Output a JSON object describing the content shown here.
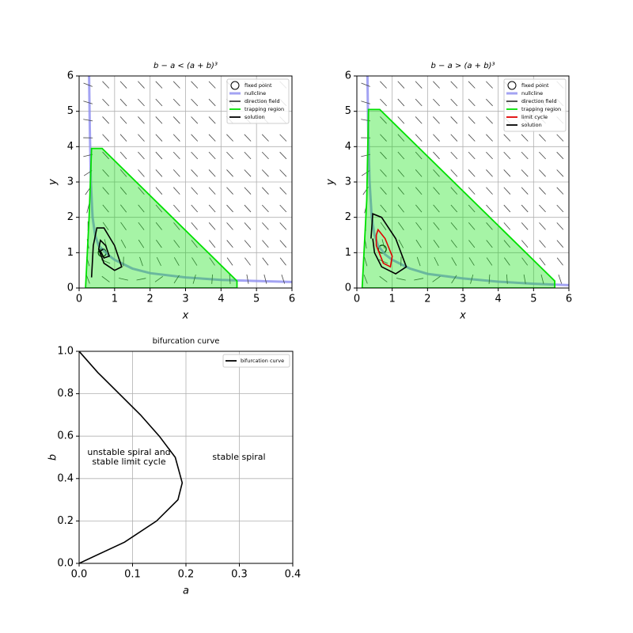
{
  "chart_data": [
    {
      "type": "line",
      "title": "b − a < (a + b)³",
      "xlabel": "x",
      "ylabel": "y",
      "xlim": [
        0,
        6
      ],
      "ylim": [
        0,
        6
      ],
      "xticks": [
        0,
        1,
        2,
        3,
        4,
        5,
        6
      ],
      "yticks": [
        0,
        1,
        2,
        3,
        4,
        5,
        6
      ],
      "grid": true,
      "legend": "upper right",
      "series": [
        {
          "name": "fixed point",
          "kind": "marker",
          "color": "#000000",
          "x": [
            0.65
          ],
          "values": [
            1.0
          ]
        },
        {
          "name": "nullcline",
          "kind": "line",
          "color": "#8c8cf0",
          "x": [
            0.28,
            0.3,
            0.33,
            0.38,
            0.45,
            0.55,
            0.8,
            1,
            1.5,
            2,
            3,
            4,
            5,
            6
          ],
          "values": [
            6,
            4.5,
            3,
            2,
            1.5,
            1.2,
            0.95,
            0.8,
            0.55,
            0.42,
            0.3,
            0.23,
            0.2,
            0.17
          ]
        },
        {
          "name": "direction field",
          "kind": "field",
          "color": "#444444"
        },
        {
          "name": "trapping region",
          "kind": "region",
          "color": "#00e000",
          "x": [
            0.18,
            0.28,
            0.35,
            0.65,
            4.45,
            4.45,
            0.18
          ],
          "values": [
            0,
            2,
            3.95,
            3.95,
            0.2,
            0,
            0
          ]
        },
        {
          "name": "solution",
          "kind": "line",
          "color": "#000000",
          "x": [
            0.35,
            0.4,
            0.5,
            0.7,
            1.0,
            1.2,
            1.0,
            0.7,
            0.55,
            0.6,
            0.75,
            0.85,
            0.7,
            0.6,
            0.68
          ],
          "values": [
            0.3,
            1.2,
            1.7,
            1.7,
            1.2,
            0.6,
            0.5,
            0.7,
            1.1,
            1.35,
            1.2,
            0.9,
            0.85,
            1.05,
            1.1
          ]
        }
      ]
    },
    {
      "type": "line",
      "title": "b − a > (a + b)³",
      "xlabel": "x",
      "ylabel": "y",
      "xlim": [
        0,
        6
      ],
      "ylim": [
        0,
        6
      ],
      "xticks": [
        0,
        1,
        2,
        3,
        4,
        5,
        6
      ],
      "yticks": [
        0,
        1,
        2,
        3,
        4,
        5,
        6
      ],
      "grid": true,
      "legend": "upper right",
      "series": [
        {
          "name": "fixed point",
          "kind": "marker",
          "color": "#000000",
          "x": [
            0.72
          ],
          "values": [
            1.1
          ]
        },
        {
          "name": "nullcline",
          "kind": "line",
          "color": "#8c8cf0",
          "x": [
            0.3,
            0.32,
            0.36,
            0.42,
            0.5,
            0.6,
            0.8,
            1,
            1.5,
            2,
            3,
            4,
            5,
            6
          ],
          "values": [
            6,
            4.5,
            3,
            2,
            1.5,
            1.2,
            0.95,
            0.8,
            0.55,
            0.4,
            0.27,
            0.18,
            0.12,
            0.08
          ]
        },
        {
          "name": "direction field",
          "kind": "field",
          "color": "#444444"
        },
        {
          "name": "trapping region",
          "kind": "region",
          "color": "#00e000",
          "x": [
            0.15,
            0.28,
            0.33,
            0.65,
            5.6,
            5.6,
            0.15
          ],
          "values": [
            0,
            2.5,
            5.05,
            5.05,
            0.2,
            0,
            0
          ]
        },
        {
          "name": "limit cycle",
          "kind": "line",
          "color": "#e00000",
          "x": [
            0.55,
            0.6,
            0.8,
            1.0,
            0.95,
            0.75,
            0.55,
            0.55
          ],
          "values": [
            1.5,
            1.65,
            1.4,
            0.9,
            0.6,
            0.7,
            1.2,
            1.5
          ]
        },
        {
          "name": "solution",
          "kind": "line",
          "color": "#000000",
          "x": [
            0.4,
            0.45,
            0.7,
            1.1,
            1.4,
            1.1,
            0.7,
            0.5,
            0.45
          ],
          "values": [
            1.4,
            2.1,
            2.0,
            1.4,
            0.6,
            0.4,
            0.6,
            1.0,
            1.4
          ]
        }
      ]
    },
    {
      "type": "line",
      "title": "bifurcation curve",
      "xlabel": "a",
      "ylabel": "b",
      "xlim": [
        0,
        0.4
      ],
      "ylim": [
        0,
        1
      ],
      "xticks": [
        {
          "value": 0,
          "label": "0.0"
        },
        {
          "value": 0.1,
          "label": "0.1"
        },
        {
          "value": 0.2,
          "label": "0.2"
        },
        {
          "value": 0.3,
          "label": "0.3"
        },
        {
          "value": 0.4,
          "label": "0.4"
        }
      ],
      "yticks": [
        {
          "value": 0,
          "label": "0.0"
        },
        {
          "value": 0.2,
          "label": "0.2"
        },
        {
          "value": 0.4,
          "label": "0.4"
        },
        {
          "value": 0.6,
          "label": "0.6"
        },
        {
          "value": 0.8,
          "label": "0.8"
        },
        {
          "value": 1,
          "label": "1.0"
        }
      ],
      "grid": true,
      "legend": "upper right",
      "annotations": [
        "unstable spiral and\nstable limit cycle",
        "stable spiral"
      ],
      "series": [
        {
          "name": "bifurcation curve",
          "kind": "line",
          "color": "#000000",
          "x": [
            0,
            0.085,
            0.145,
            0.185,
            0.193,
            0.18,
            0.15,
            0.115,
            0.075,
            0.035,
            0
          ],
          "values": [
            0,
            0.1,
            0.2,
            0.3,
            0.38,
            0.5,
            0.6,
            0.7,
            0.8,
            0.9,
            1
          ]
        }
      ]
    }
  ]
}
